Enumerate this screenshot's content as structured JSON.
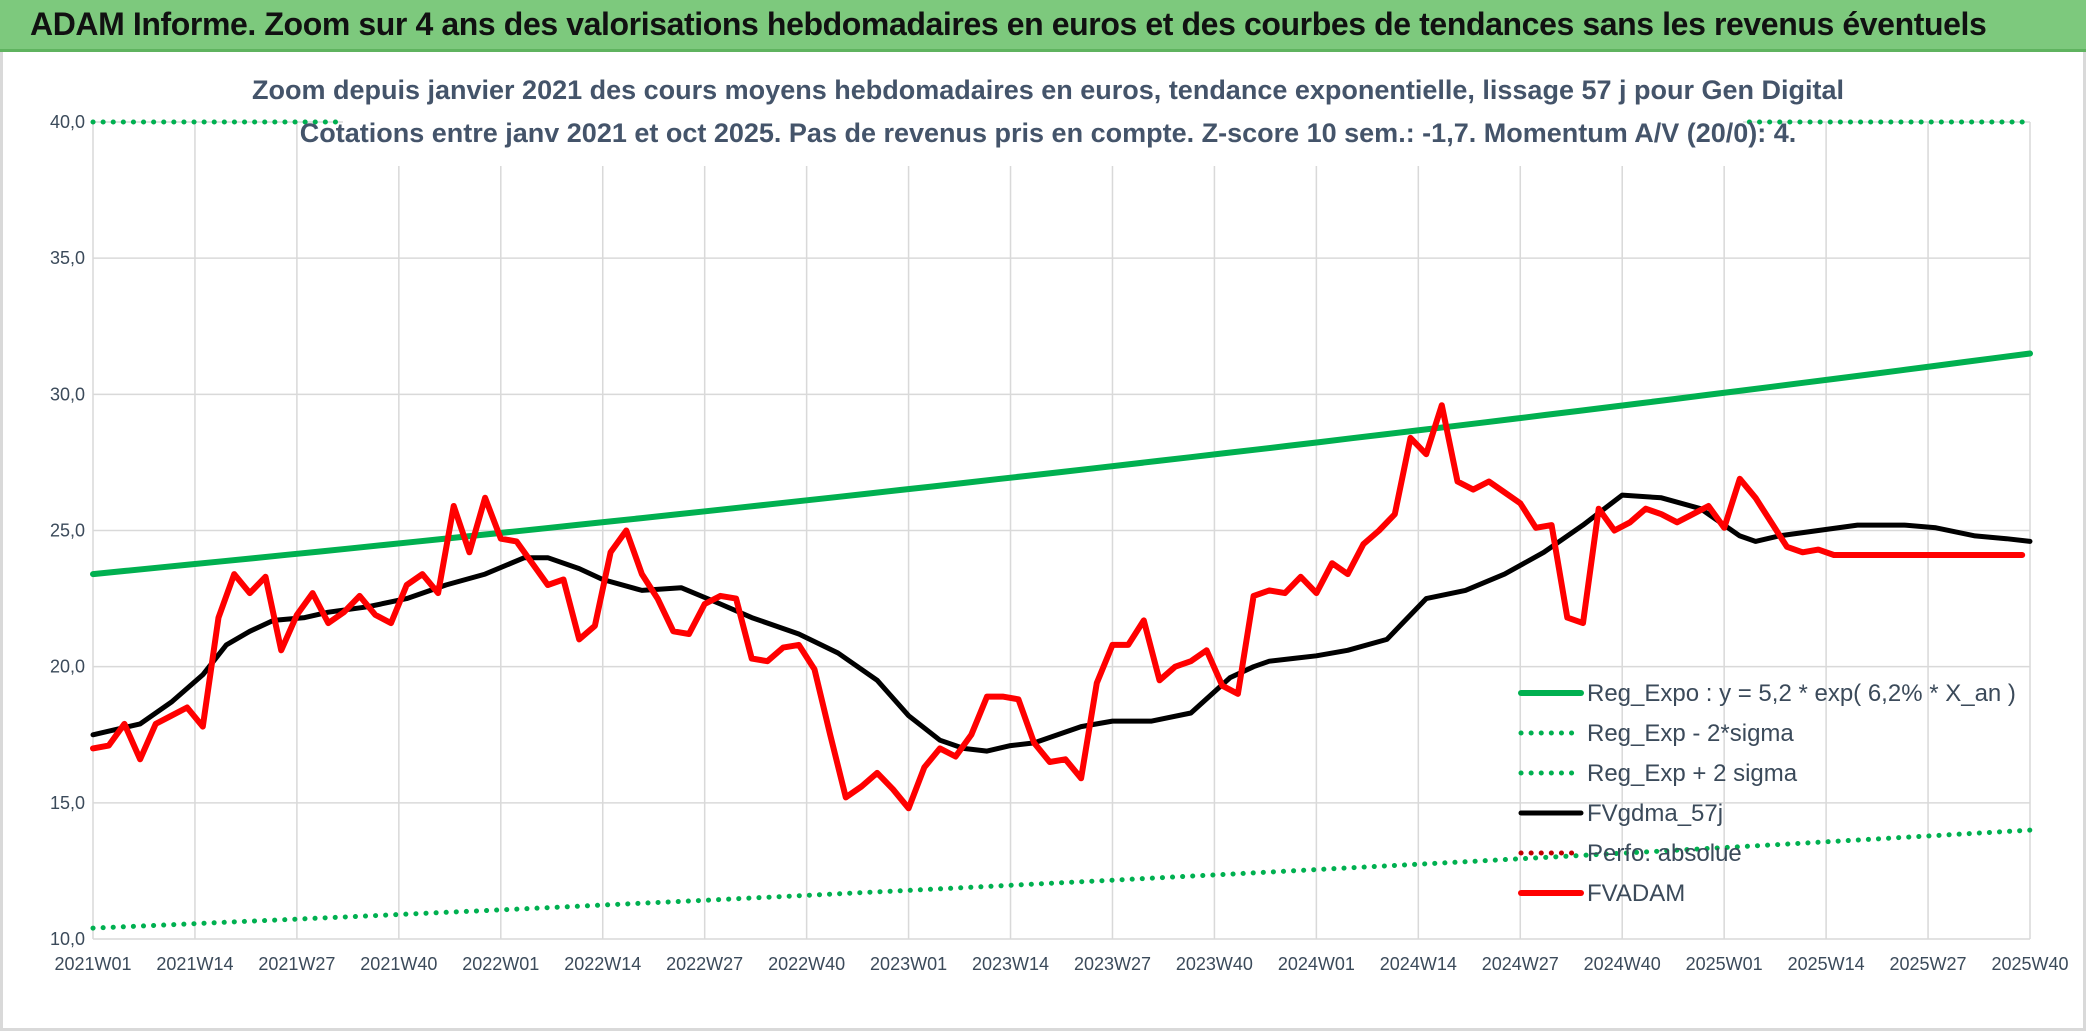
{
  "header": {
    "title": "ADAM Informe. Zoom sur 4 ans des valorisations hebdomadaires en euros et des courbes de tendances sans les revenus éventuels"
  },
  "chart_data": {
    "type": "line",
    "title": "Zoom depuis janvier 2021 des cours moyens hebdomadaires en euros, tendance exponentielle, lissage 57 j pour Gen Digital",
    "subtitle": "Cotations entre janv 2021 et oct 2025. Pas de revenus pris en compte. Z-score 10 sem.: -1,7. Momentum A/V (20/0): 4.",
    "xlabel": "",
    "ylabel": "",
    "ylim": [
      10,
      40
    ],
    "yticks": [
      "10,0",
      "15,0",
      "20,0",
      "25,0",
      "30,0",
      "35,0",
      "40,0"
    ],
    "xticks": [
      "2021W01",
      "2021W14",
      "2021W27",
      "2021W40",
      "2022W01",
      "2022W14",
      "2022W27",
      "2022W40",
      "2023W01",
      "2023W14",
      "2023W27",
      "2023W40",
      "2024W01",
      "2024W14",
      "2024W27",
      "2024W40",
      "2025W01",
      "2025W14",
      "2025W27",
      "2025W40"
    ],
    "grid": "vertical and horizontal",
    "legend_position": "bottom-right",
    "series": [
      {
        "name": "Reg_Expo : y = 5,2 * exp( 6,2% *  X_an )",
        "color": "#00b050",
        "style": "solid",
        "x": [
          0,
          247
        ],
        "values": [
          23.4,
          31.5
        ]
      },
      {
        "name": "Reg_Exp - 2*sigma",
        "color": "#00b050",
        "style": "dotted",
        "x": [
          0,
          247
        ],
        "values": [
          10.4,
          14.0
        ]
      },
      {
        "name": "Reg_Exp + 2 sigma",
        "color": "#00b050",
        "style": "dotted",
        "x": [
          0,
          247
        ],
        "values": [
          40.0,
          40.0
        ]
      },
      {
        "name": "FVgdma_57j",
        "color": "#000000",
        "style": "solid",
        "x": [
          0,
          6,
          10,
          14,
          17,
          20,
          23,
          27,
          30,
          35,
          40,
          45,
          50,
          55,
          58,
          62,
          65,
          70,
          75,
          80,
          84,
          90,
          95,
          100,
          104,
          108,
          111,
          114,
          117,
          120,
          123,
          126,
          130,
          135,
          140,
          145,
          148,
          150,
          153,
          156,
          160,
          165,
          170,
          175,
          180,
          185,
          190,
          195,
          200,
          205,
          210,
          212,
          215,
          220,
          225,
          228,
          231,
          235,
          240,
          244,
          247
        ],
        "values": [
          17.5,
          17.9,
          18.7,
          19.7,
          20.8,
          21.3,
          21.7,
          21.8,
          22.0,
          22.2,
          22.5,
          23.0,
          23.4,
          24.0,
          24.0,
          23.6,
          23.2,
          22.8,
          22.9,
          22.3,
          21.8,
          21.2,
          20.5,
          19.5,
          18.2,
          17.3,
          17.0,
          16.9,
          17.1,
          17.2,
          17.5,
          17.8,
          18.0,
          18.0,
          18.3,
          19.6,
          20.0,
          20.2,
          20.3,
          20.4,
          20.6,
          21.0,
          22.5,
          22.8,
          23.4,
          24.2,
          25.2,
          26.3,
          26.2,
          25.8,
          24.8,
          24.6,
          24.8,
          25.0,
          25.2,
          25.2,
          25.2,
          25.1,
          24.8,
          24.7,
          24.6
        ]
      },
      {
        "name": "Perfo. absolue",
        "color": "#c00000",
        "style": "dotted",
        "x": [],
        "values": []
      },
      {
        "name": "FVADAM",
        "color": "#ff0000",
        "style": "solid",
        "x": [
          0,
          2,
          4,
          6,
          8,
          10,
          12,
          14,
          16,
          18,
          20,
          22,
          24,
          26,
          28,
          30,
          32,
          34,
          36,
          38,
          40,
          42,
          44,
          46,
          48,
          50,
          52,
          54,
          56,
          58,
          60,
          62,
          64,
          66,
          68,
          70,
          72,
          74,
          76,
          78,
          80,
          82,
          84,
          86,
          88,
          90,
          92,
          94,
          96,
          98,
          100,
          102,
          104,
          106,
          108,
          110,
          112,
          114,
          116,
          118,
          120,
          122,
          124,
          126,
          128,
          130,
          132,
          134,
          136,
          138,
          140,
          142,
          144,
          146,
          148,
          150,
          152,
          154,
          156,
          158,
          160,
          162,
          164,
          166,
          168,
          170,
          172,
          174,
          176,
          178,
          180,
          182,
          184,
          186,
          188,
          190,
          192,
          194,
          196,
          198,
          200,
          202,
          204,
          206,
          208,
          210,
          212,
          214,
          216,
          218,
          220,
          222,
          224,
          226,
          228,
          230,
          232,
          234,
          236,
          238,
          240,
          242,
          244,
          246
        ],
        "values": [
          17.0,
          17.1,
          17.9,
          16.6,
          17.9,
          18.2,
          18.5,
          17.8,
          21.8,
          23.4,
          22.7,
          23.3,
          20.6,
          21.9,
          22.7,
          21.6,
          22.0,
          22.6,
          21.9,
          21.6,
          23.0,
          23.4,
          22.7,
          25.9,
          24.2,
          26.2,
          24.7,
          24.6,
          23.8,
          23.0,
          23.2,
          21.0,
          21.5,
          24.2,
          25.0,
          23.4,
          22.5,
          21.3,
          21.2,
          22.3,
          22.6,
          22.5,
          20.3,
          20.2,
          20.7,
          20.8,
          19.9,
          17.5,
          15.2,
          15.6,
          16.1,
          15.5,
          14.8,
          16.3,
          17.0,
          16.7,
          17.5,
          18.9,
          18.9,
          18.8,
          17.2,
          16.5,
          16.6,
          15.9,
          19.4,
          20.8,
          20.8,
          21.7,
          19.5,
          20.0,
          20.2,
          20.6,
          19.3,
          19.0,
          22.6,
          22.8,
          22.7,
          23.3,
          22.7,
          23.8,
          23.4,
          24.5,
          25.0,
          25.6,
          28.4,
          27.8,
          29.6,
          26.8,
          26.5,
          26.8,
          26.4,
          26.0,
          25.1,
          25.2,
          21.8,
          21.6,
          25.8,
          25.0,
          25.3,
          25.8,
          25.6,
          25.3,
          25.6,
          25.9,
          25.1,
          26.9,
          26.2,
          25.3,
          24.4,
          24.2,
          24.3,
          24.1,
          24.1,
          24.1,
          24.1,
          24.1,
          24.1,
          24.1,
          24.1,
          24.1,
          24.1,
          24.1,
          24.1,
          24.1
        ]
      }
    ]
  }
}
